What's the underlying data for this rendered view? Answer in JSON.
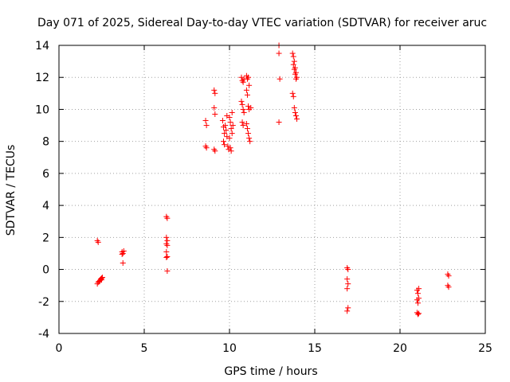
{
  "chart_data": {
    "type": "scatter",
    "title": "Day 071 of 2025, Sidereal Day-to-day VTEC variation (SDTVAR) for receiver aruc",
    "xlabel": "GPS time / hours",
    "ylabel": "SDTVAR / TECUs",
    "xlim": [
      0,
      25
    ],
    "ylim": [
      -4,
      14
    ],
    "xticks": [
      0,
      5,
      10,
      15,
      20,
      25
    ],
    "yticks": [
      -4,
      -2,
      0,
      2,
      4,
      6,
      8,
      10,
      12,
      14
    ],
    "grid": true,
    "marker": "+",
    "color": "#ff0000",
    "series": [
      {
        "name": "SDTVAR",
        "points": [
          [
            2.25,
            1.8
          ],
          [
            2.3,
            1.7
          ],
          [
            2.25,
            -0.9
          ],
          [
            2.3,
            -0.8
          ],
          [
            2.35,
            -0.75
          ],
          [
            2.4,
            -0.7
          ],
          [
            2.45,
            -0.6
          ],
          [
            2.5,
            -0.55
          ],
          [
            2.55,
            -0.5
          ],
          [
            2.5,
            -0.65
          ],
          [
            3.7,
            1.1
          ],
          [
            3.75,
            1.0
          ],
          [
            3.8,
            1.15
          ],
          [
            3.7,
            0.95
          ],
          [
            3.75,
            0.4
          ],
          [
            6.3,
            3.3
          ],
          [
            6.35,
            3.2
          ],
          [
            6.3,
            2.0
          ],
          [
            6.35,
            1.8
          ],
          [
            6.3,
            1.6
          ],
          [
            6.35,
            1.5
          ],
          [
            6.3,
            1.1
          ],
          [
            6.35,
            0.8
          ],
          [
            6.3,
            0.75
          ],
          [
            6.35,
            -0.1
          ],
          [
            8.6,
            9.3
          ],
          [
            8.65,
            9.0
          ],
          [
            8.6,
            7.7
          ],
          [
            8.65,
            7.6
          ],
          [
            9.1,
            11.2
          ],
          [
            9.15,
            11.0
          ],
          [
            9.1,
            10.1
          ],
          [
            9.15,
            9.7
          ],
          [
            9.1,
            7.5
          ],
          [
            9.15,
            7.4
          ],
          [
            9.6,
            9.3
          ],
          [
            9.65,
            8.9
          ],
          [
            9.7,
            8.5
          ],
          [
            9.65,
            8.0
          ],
          [
            9.7,
            7.8
          ],
          [
            9.75,
            9.0
          ],
          [
            9.8,
            8.7
          ],
          [
            9.85,
            8.3
          ],
          [
            9.9,
            7.7
          ],
          [
            9.95,
            7.5
          ],
          [
            10.0,
            9.5
          ],
          [
            10.05,
            9.2
          ],
          [
            10.1,
            8.8
          ],
          [
            10.0,
            8.2
          ],
          [
            10.05,
            7.6
          ],
          [
            10.1,
            7.4
          ],
          [
            10.15,
            9.8
          ],
          [
            10.2,
            9.0
          ],
          [
            10.15,
            8.5
          ],
          [
            9.85,
            9.6
          ],
          [
            10.7,
            12.0
          ],
          [
            10.75,
            11.8
          ],
          [
            10.8,
            11.7
          ],
          [
            10.85,
            11.9
          ],
          [
            10.7,
            10.5
          ],
          [
            10.75,
            10.3
          ],
          [
            10.8,
            10.0
          ],
          [
            10.85,
            9.8
          ],
          [
            10.75,
            9.2
          ],
          [
            10.8,
            9.0
          ],
          [
            11.0,
            12.1
          ],
          [
            11.05,
            11.9
          ],
          [
            11.1,
            12.0
          ],
          [
            11.15,
            11.5
          ],
          [
            11.0,
            11.2
          ],
          [
            11.05,
            10.9
          ],
          [
            11.1,
            10.2
          ],
          [
            11.15,
            10.0
          ],
          [
            11.0,
            9.1
          ],
          [
            11.05,
            8.8
          ],
          [
            11.1,
            8.5
          ],
          [
            11.15,
            8.2
          ],
          [
            11.2,
            8.0
          ],
          [
            11.25,
            10.1
          ],
          [
            12.9,
            14.0
          ],
          [
            12.9,
            13.5
          ],
          [
            12.95,
            11.9
          ],
          [
            12.9,
            9.2
          ],
          [
            13.7,
            13.5
          ],
          [
            13.75,
            13.3
          ],
          [
            13.8,
            13.0
          ],
          [
            13.85,
            12.6
          ],
          [
            13.9,
            12.3
          ],
          [
            13.95,
            12.0
          ],
          [
            13.75,
            12.8
          ],
          [
            13.8,
            12.5
          ],
          [
            13.85,
            12.2
          ],
          [
            13.9,
            11.9
          ],
          [
            13.7,
            11.0
          ],
          [
            13.75,
            10.8
          ],
          [
            13.8,
            10.1
          ],
          [
            13.85,
            9.8
          ],
          [
            13.9,
            9.6
          ],
          [
            13.95,
            9.4
          ],
          [
            16.9,
            0.1
          ],
          [
            16.95,
            0.0
          ],
          [
            16.9,
            -0.6
          ],
          [
            16.95,
            -0.9
          ],
          [
            16.9,
            -1.2
          ],
          [
            16.95,
            -2.4
          ],
          [
            16.9,
            -2.6
          ],
          [
            21.0,
            -1.3
          ],
          [
            21.05,
            -1.5
          ],
          [
            21.1,
            -1.2
          ],
          [
            21.0,
            -1.9
          ],
          [
            21.05,
            -2.1
          ],
          [
            21.1,
            -1.8
          ],
          [
            21.0,
            -2.7
          ],
          [
            21.05,
            -2.8
          ],
          [
            21.1,
            -2.75
          ],
          [
            22.8,
            -0.3
          ],
          [
            22.85,
            -0.4
          ],
          [
            22.8,
            -1.0
          ],
          [
            22.85,
            -1.1
          ]
        ]
      }
    ]
  }
}
